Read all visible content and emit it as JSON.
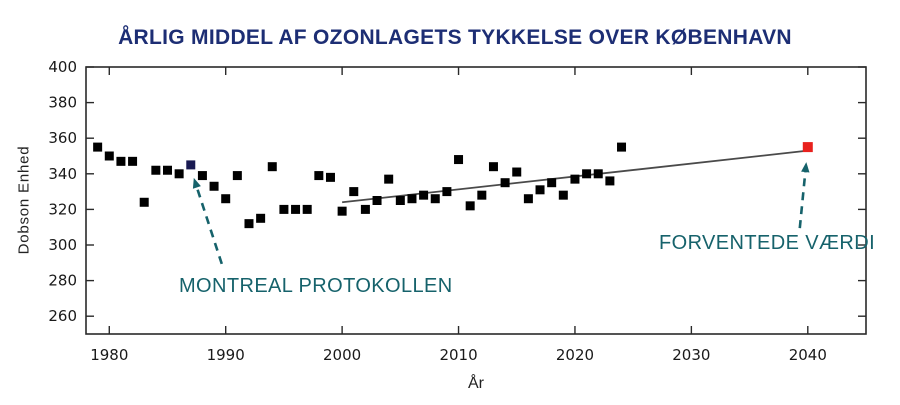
{
  "chart_data": {
    "type": "scatter",
    "title": "ÅRLIG MIDDEL AF OZONLAGETS TYKKELSE OVER KØBENHAVN",
    "title_color": "#1d2e74",
    "xlabel": "År",
    "ylabel": "Dobson Enhed",
    "xlim": [
      1978,
      2045
    ],
    "ylim": [
      250,
      400
    ],
    "x_ticks": [
      1980,
      1990,
      2000,
      2010,
      2020,
      2030,
      2040
    ],
    "y_ticks": [
      260,
      280,
      300,
      320,
      340,
      360,
      380,
      400
    ],
    "grid": false,
    "legend": "none",
    "axis_color": "#2a2a2a",
    "series": [
      {
        "name": "aarlig-middel-maalt",
        "marker": "square",
        "color": "#000000",
        "size": 9,
        "points": [
          [
            1979,
            355
          ],
          [
            1980,
            350
          ],
          [
            1981,
            347
          ],
          [
            1982,
            347
          ],
          [
            1983,
            324
          ],
          [
            1984,
            342
          ],
          [
            1985,
            342
          ],
          [
            1986,
            340
          ],
          [
            1988,
            339
          ],
          [
            1989,
            333
          ],
          [
            1990,
            326
          ],
          [
            1991,
            339
          ],
          [
            1992,
            312
          ],
          [
            1993,
            315
          ],
          [
            1994,
            344
          ],
          [
            1995,
            320
          ],
          [
            1996,
            320
          ],
          [
            1997,
            320
          ],
          [
            1998,
            339
          ],
          [
            1999,
            338
          ],
          [
            2000,
            319
          ],
          [
            2001,
            330
          ],
          [
            2002,
            320
          ],
          [
            2003,
            325
          ],
          [
            2004,
            337
          ],
          [
            2005,
            325
          ],
          [
            2006,
            326
          ],
          [
            2007,
            328
          ],
          [
            2008,
            326
          ],
          [
            2009,
            330
          ],
          [
            2010,
            348
          ],
          [
            2011,
            322
          ],
          [
            2012,
            328
          ],
          [
            2013,
            344
          ],
          [
            2014,
            335
          ],
          [
            2015,
            341
          ],
          [
            2016,
            326
          ],
          [
            2017,
            331
          ],
          [
            2018,
            335
          ],
          [
            2019,
            328
          ],
          [
            2020,
            337
          ],
          [
            2021,
            340
          ],
          [
            2022,
            340
          ],
          [
            2023,
            336
          ],
          [
            2024,
            355
          ]
        ]
      },
      {
        "name": "montreal-protokollen-punkt",
        "marker": "square",
        "color": "#191a52",
        "size": 9,
        "points": [
          [
            1987,
            345
          ]
        ]
      },
      {
        "name": "forventede-vaerdi-punkt",
        "marker": "square",
        "color": "#e8211d",
        "size": 10,
        "points": [
          [
            2040,
            355
          ]
        ]
      }
    ],
    "trend_line": {
      "x": [
        2000,
        2040
      ],
      "y": [
        324,
        353
      ],
      "color": "#4a4a4a"
    }
  },
  "annotations": {
    "montreal": {
      "label": "MONTREAL PROTOKOLLEN",
      "color": "#16626b",
      "target": {
        "year": 1987,
        "value": 345
      }
    },
    "forventede": {
      "label": "FORVENTEDE VÆRDI",
      "color": "#16626b",
      "target": {
        "year": 2040,
        "value": 355
      }
    }
  }
}
